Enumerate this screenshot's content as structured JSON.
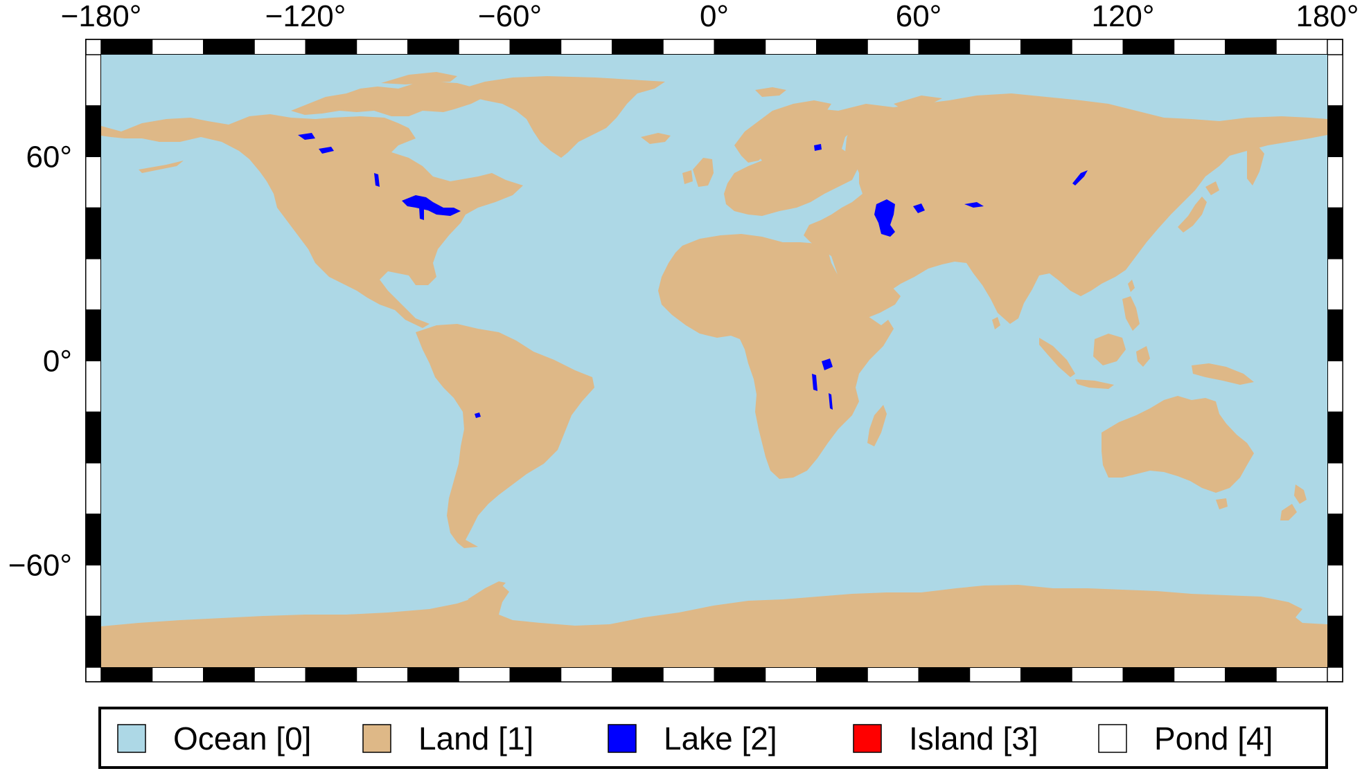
{
  "map": {
    "projection": "equirectangular",
    "extent": {
      "lon": [
        -180,
        180
      ],
      "lat": [
        -90,
        90
      ]
    },
    "colors": {
      "ocean": "#add8e6",
      "land": "#deb887",
      "lake": "#0000ff",
      "island": "#ff0000",
      "pond": "#ffffff",
      "frame_dark": "#000000",
      "frame_light": "#ffffff"
    },
    "x_ticks": [
      {
        "value": -180,
        "label": "−180°"
      },
      {
        "value": -120,
        "label": "−120°"
      },
      {
        "value": -60,
        "label": "−60°"
      },
      {
        "value": 0,
        "label": "0°"
      },
      {
        "value": 60,
        "label": "60°"
      },
      {
        "value": 120,
        "label": "120°"
      },
      {
        "value": 180,
        "label": "180°"
      }
    ],
    "y_ticks": [
      {
        "value": 60,
        "label": "60°"
      },
      {
        "value": 0,
        "label": "0°"
      },
      {
        "value": -60,
        "label": "−60°"
      }
    ]
  },
  "legend": {
    "items": [
      {
        "label": "Ocean [0]",
        "color": "#add8e6",
        "key": "ocean"
      },
      {
        "label": "Land [1]",
        "color": "#deb887",
        "key": "land"
      },
      {
        "label": "Lake [2]",
        "color": "#0000ff",
        "key": "lake"
      },
      {
        "label": "Island [3]",
        "color": "#ff0000",
        "key": "island"
      },
      {
        "label": "Pond [4]",
        "color": "#ffffff",
        "key": "pond"
      }
    ]
  }
}
